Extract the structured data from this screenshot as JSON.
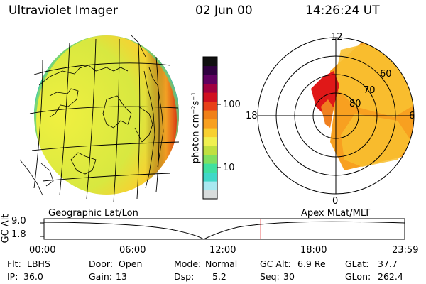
{
  "header": {
    "title": "Ultraviolet Imager",
    "date": "02 Jun 00",
    "time": "14:26:24 UT"
  },
  "colorbar": {
    "label": "photon cm⁻²s⁻¹",
    "ticks": [
      "100",
      "10"
    ],
    "colors": [
      "#d8dcdc",
      "#a8e8f0",
      "#40d8c8",
      "#40e0a0",
      "#80e060",
      "#c0e040",
      "#f0f050",
      "#f8d030",
      "#f8a020",
      "#f08018",
      "#e84018",
      "#d01020",
      "#a00040",
      "#600060",
      "#300040",
      "#101010"
    ]
  },
  "globe_panel": {
    "label": "Geographic Lat/Lon",
    "disk_colors": [
      "#f0f040",
      "#d8e840",
      "#f8d030",
      "#f0a020",
      "#e05010",
      "#c81010"
    ]
  },
  "polar_panel": {
    "label": "Apex MLat/MLT",
    "mlt_labels": [
      "12",
      "18",
      "6",
      "0"
    ],
    "mlat_labels": [
      "60",
      "70",
      "80"
    ]
  },
  "timeline": {
    "axis_title": "GC Alt",
    "y_labels": [
      "9.0",
      "1.8"
    ],
    "x_labels": [
      "00:00",
      "06:00",
      "12:00",
      "18:00",
      "23:59"
    ],
    "current_time_fraction": 0.601,
    "marker_color": "#e00000"
  },
  "info": {
    "filter_label": "Flt:",
    "filter_value": "LBHS",
    "door_label": "Door:",
    "door_value": "Open",
    "mode_label": "Mode:",
    "mode_value": "Normal",
    "gcalt_label": "GC Alt:",
    "gcalt_value": "6.9 Re",
    "glat_label": "GLat:",
    "glat_value": "37.7",
    "ip_label": "IP:",
    "ip_value": "36.0",
    "gain_label": "Gain:",
    "gain_value": "13",
    "dsp_label": "Dsp:",
    "dsp_value": "5.2",
    "seq_label": "Seq:",
    "seq_value": "30",
    "glon_label": "GLon:",
    "glon_value": "262.4"
  }
}
